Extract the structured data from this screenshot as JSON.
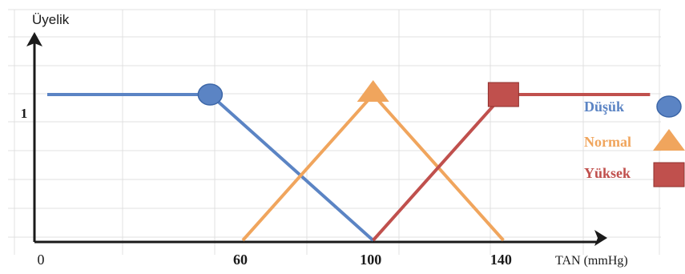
{
  "chart_data": {
    "type": "line",
    "ylabel": "Üyelik",
    "xlabel": "TAN (mmHg)",
    "xlim": [
      0,
      210
    ],
    "ylim": [
      0,
      1.55
    ],
    "x_ticks": [
      {
        "value": 0,
        "label": "0",
        "bold": false
      },
      {
        "value": 60,
        "label": "60",
        "bold": true
      },
      {
        "value": 100,
        "label": "100",
        "bold": true
      },
      {
        "value": 140,
        "label": "140",
        "bold": true
      }
    ],
    "y_ticks": [
      {
        "value": 1,
        "label": "1"
      }
    ],
    "grid": true,
    "legend_position": "right",
    "series": [
      {
        "name": "Düşük",
        "color": "#5b84c4",
        "marker": "circle",
        "marker_point": [
          50,
          1
        ],
        "points": [
          [
            0,
            1
          ],
          [
            50,
            1
          ],
          [
            100,
            0
          ]
        ]
      },
      {
        "name": "Normal",
        "color": "#f0a55d",
        "marker": "triangle",
        "marker_point": [
          100,
          1
        ],
        "points": [
          [
            60,
            0
          ],
          [
            100,
            1
          ],
          [
            140,
            0
          ]
        ]
      },
      {
        "name": "Yüksek",
        "color": "#c0504d",
        "marker": "square",
        "marker_point": [
          140,
          1
        ],
        "points": [
          [
            100,
            0
          ],
          [
            140,
            1
          ],
          [
            185,
            1
          ]
        ]
      }
    ]
  }
}
